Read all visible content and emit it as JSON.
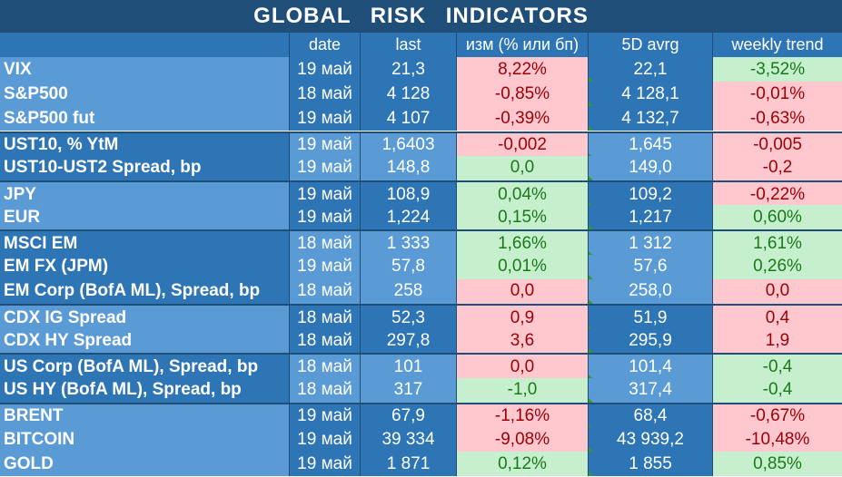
{
  "title": "GLOBAL RISK INDICATORS",
  "headers": [
    "",
    "date",
    "last",
    "изм (% или бп)",
    "5D avrg",
    "weekly trend"
  ],
  "rows": [
    {
      "name": "VIX",
      "date": "19 май",
      "last": "21,3",
      "change": "8,22%",
      "change_dir": "neg",
      "avg": "22,1",
      "trend": "-3,52%",
      "trend_dir": "pos"
    },
    {
      "name": "S&P500",
      "date": "18 май",
      "last": "4 128",
      "change": "-0,85%",
      "change_dir": "neg",
      "avg": "4 128,1",
      "trend": "-0,01%",
      "trend_dir": "neg"
    },
    {
      "name": "S&P500 fut",
      "date": "19 май",
      "last": "4 107",
      "change": "-0,39%",
      "change_dir": "neg",
      "avg": "4 132,7",
      "trend": "-0,63%",
      "trend_dir": "neg"
    },
    {
      "name": "UST10, % YtM",
      "date": "19 май",
      "last": "1,6403",
      "change": "-0,002",
      "change_dir": "neg",
      "avg": "1,645",
      "trend": "-0,005",
      "trend_dir": "neg"
    },
    {
      "name": "UST10-UST2 Spread, bp",
      "date": "19 май",
      "last": "148,8",
      "change": "0,0",
      "change_dir": "pos",
      "avg": "149,0",
      "trend": "-0,2",
      "trend_dir": "neg"
    },
    {
      "name": "JPY",
      "date": "19 май",
      "last": "108,9",
      "change": "0,04%",
      "change_dir": "pos",
      "avg": "109,2",
      "trend": "-0,22%",
      "trend_dir": "neg"
    },
    {
      "name": "EUR",
      "date": "19 май",
      "last": "1,224",
      "change": "0,15%",
      "change_dir": "pos",
      "avg": "1,217",
      "trend": "0,60%",
      "trend_dir": "pos"
    },
    {
      "name": "MSCI EM",
      "date": "18 май",
      "last": "1 333",
      "change": "1,66%",
      "change_dir": "pos",
      "avg": "1 312",
      "trend": "1,61%",
      "trend_dir": "pos"
    },
    {
      "name": "EM FX (JPM)",
      "date": "19 май",
      "last": "57,8",
      "change": "0,01%",
      "change_dir": "pos",
      "avg": "57,6",
      "trend": "0,26%",
      "trend_dir": "pos"
    },
    {
      "name": "EM Corp (BofA ML), Spread, bp",
      "date": "18 май",
      "last": "258",
      "change": "0,0",
      "change_dir": "neg",
      "avg": "258,0",
      "trend": "0,0",
      "trend_dir": "neg"
    },
    {
      "name": "CDX IG Spread",
      "date": "18 май",
      "last": "52,3",
      "change": "0,9",
      "change_dir": "neg",
      "avg": "51,9",
      "trend": "0,4",
      "trend_dir": "neg"
    },
    {
      "name": "CDX HY Spread",
      "date": "18 май",
      "last": "297,8",
      "change": "3,6",
      "change_dir": "neg",
      "avg": "295,9",
      "trend": "1,9",
      "trend_dir": "neg"
    },
    {
      "name": "US Corp (BofA ML), Spread, bp",
      "date": "18 май",
      "last": "101",
      "change": "0,0",
      "change_dir": "neg",
      "avg": "101,4",
      "trend": "-0,4",
      "trend_dir": "pos"
    },
    {
      "name": "US HY (BofA ML), Spread, bp",
      "date": "18 май",
      "last": "317",
      "change": "-1,0",
      "change_dir": "pos",
      "avg": "317,4",
      "trend": "-0,4",
      "trend_dir": "pos"
    },
    {
      "name": "BRENT",
      "date": "19 май",
      "last": "67,9",
      "change": "-1,16%",
      "change_dir": "neg",
      "avg": "68,4",
      "trend": "-0,67%",
      "trend_dir": "neg"
    },
    {
      "name": "BITCOIN",
      "date": "19 май",
      "last": "39 334",
      "change": "-9,08%",
      "change_dir": "neg",
      "avg": "43 939,2",
      "trend": "-10,48%",
      "trend_dir": "neg"
    },
    {
      "name": "GOLD",
      "date": "19 май",
      "last": "1 871",
      "change": "0,12%",
      "change_dir": "pos",
      "avg": "1 855",
      "trend": "0,85%",
      "trend_dir": "pos"
    }
  ]
}
